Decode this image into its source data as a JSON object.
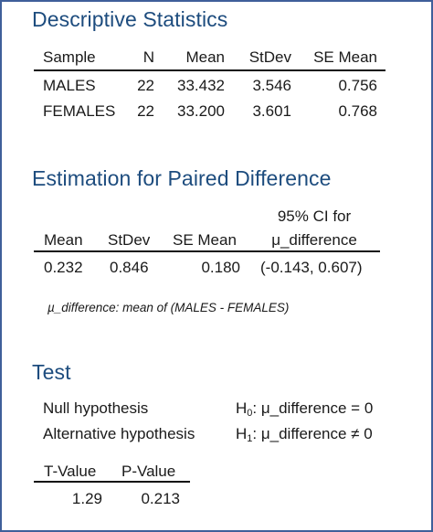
{
  "descriptive": {
    "title": "Descriptive Statistics",
    "headers": [
      "Sample",
      "N",
      "Mean",
      "StDev",
      "SE Mean"
    ],
    "rows": [
      [
        "MALES",
        "22",
        "33.432",
        "3.546",
        "0.756"
      ],
      [
        "FEMALES",
        "22",
        "33.200",
        "3.601",
        "0.768"
      ]
    ]
  },
  "estimation": {
    "title": "Estimation for Paired Difference",
    "ci_header_top": "95% CI for",
    "headers": [
      "Mean",
      "StDev",
      "SE Mean",
      "μ_difference"
    ],
    "row": [
      "0.232",
      "0.846",
      "0.180",
      "(-0.143, 0.607)"
    ],
    "note": "µ_difference: mean of (MALES - FEMALES)"
  },
  "test": {
    "title": "Test",
    "null_label": "Null hypothesis",
    "null_symbol": "H",
    "null_sub": "0",
    "null_statement": ": μ_difference = 0",
    "alt_label": "Alternative hypothesis",
    "alt_symbol": "H",
    "alt_sub": "1",
    "alt_statement": ": μ_difference ≠ 0",
    "headers": [
      "T-Value",
      "P-Value"
    ],
    "row": [
      "1.29",
      "0.213"
    ]
  }
}
